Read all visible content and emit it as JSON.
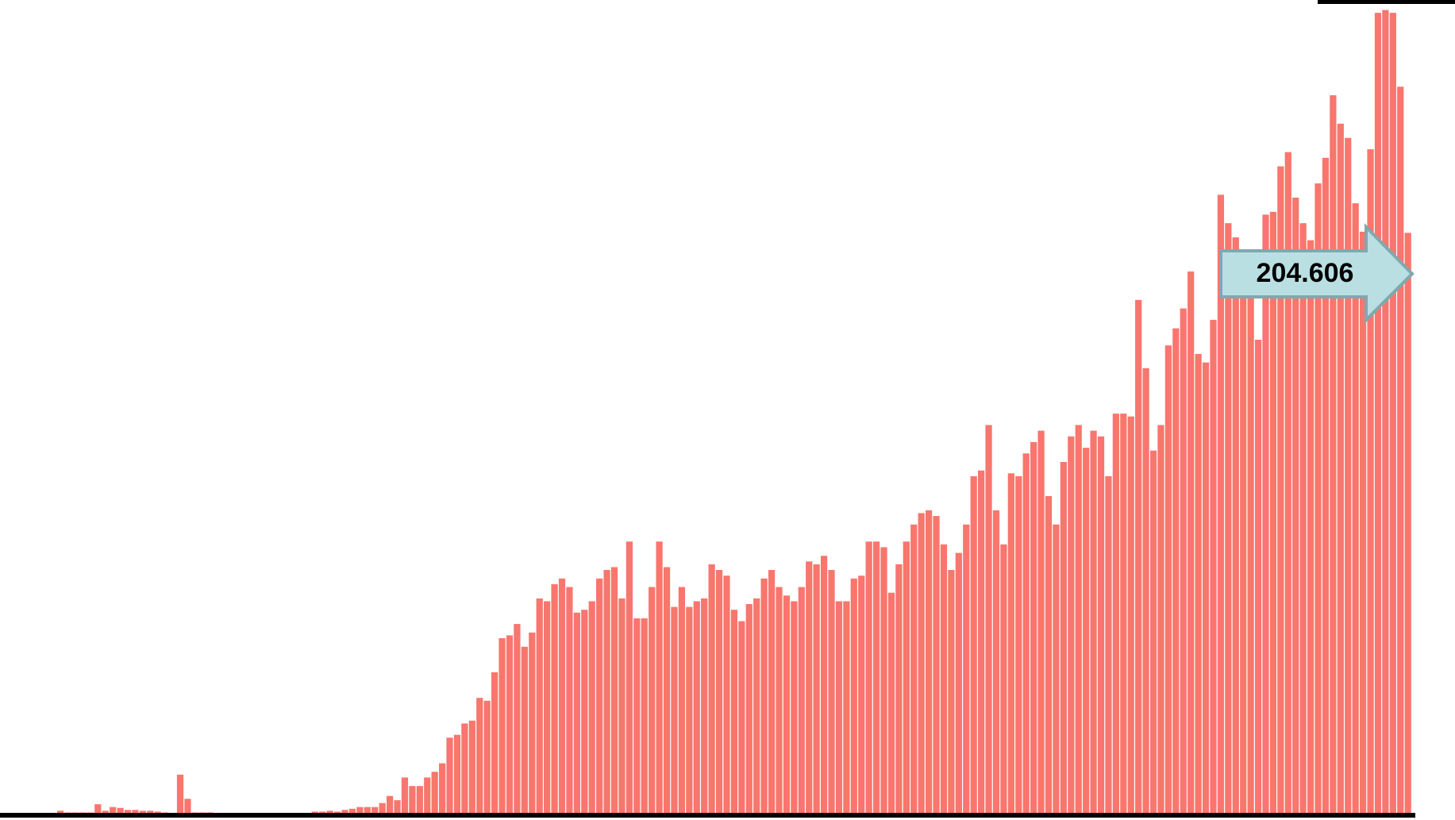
{
  "chart_data": {
    "type": "bar",
    "color": "#f8766d",
    "annotation": "204.606",
    "ylim": [
      0,
      284
    ],
    "values": [
      0,
      0,
      0,
      0,
      0,
      0,
      0,
      1.3,
      0.7,
      0.7,
      0.7,
      0.7,
      3.6,
      1.3,
      2.6,
      2.3,
      1.6,
      1.6,
      1.3,
      1.3,
      1,
      0.7,
      0,
      14,
      5.5,
      0.7,
      0.7,
      0.7,
      0.3,
      0,
      0,
      0.3,
      0,
      0,
      0,
      0,
      0,
      0,
      0,
      0,
      0.3,
      1,
      1,
      1.3,
      1,
      1.6,
      2,
      2.6,
      2.6,
      2.6,
      4,
      6.5,
      5,
      13,
      10,
      10,
      13,
      15,
      18,
      27,
      28,
      32,
      33,
      41,
      40,
      50,
      62,
      63,
      67,
      59,
      64,
      76,
      75,
      81,
      83,
      80,
      71,
      72,
      75,
      83,
      86,
      87,
      76,
      96,
      69,
      69,
      80,
      96,
      87,
      73,
      80,
      73,
      75,
      76,
      88,
      86,
      84,
      72,
      68,
      74,
      76,
      83,
      86,
      80,
      77,
      75,
      80,
      89,
      88,
      91,
      86,
      75,
      75,
      83,
      84,
      96,
      96,
      94,
      78,
      88,
      96,
      102,
      106,
      107,
      105,
      95,
      86,
      92,
      102,
      119,
      121,
      137,
      107,
      95,
      120,
      119,
      127,
      131,
      135,
      112,
      102,
      124,
      133,
      137,
      129,
      135,
      133,
      119,
      141,
      141,
      140,
      181,
      157,
      128,
      137,
      165,
      171,
      178,
      191,
      162,
      159,
      174,
      218,
      208,
      203,
      189,
      182,
      167,
      211,
      212,
      228,
      233,
      217,
      208,
      202,
      222,
      231,
      253,
      243,
      238,
      215,
      205,
      234,
      282,
      283,
      282,
      256,
      204.606
    ]
  }
}
